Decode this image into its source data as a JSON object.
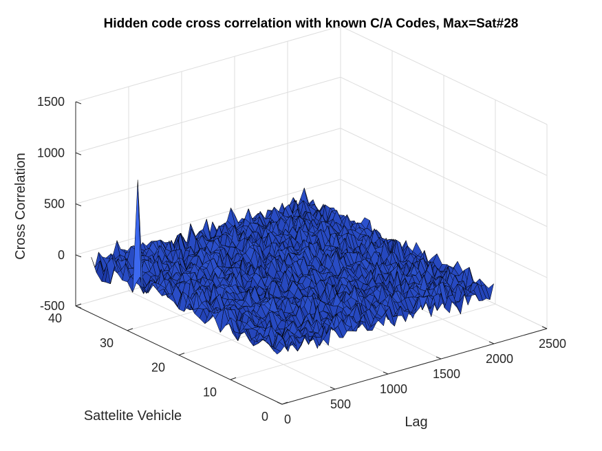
{
  "chart_data": {
    "type": "surface",
    "title": "Hidden code cross correlation with known C/A Codes, Max=Sat#28",
    "xlabel": "Lag",
    "ylabel": "Sattelite Vehicle",
    "zlabel": "Cross Correlation",
    "xlim": [
      0,
      2500
    ],
    "ylim": [
      0,
      40
    ],
    "zlim": [
      -500,
      1500
    ],
    "x_ticks": [
      0,
      500,
      1000,
      1500,
      2000,
      2500
    ],
    "y_ticks": [
      0,
      10,
      20,
      30,
      40
    ],
    "z_ticks": [
      -500,
      0,
      500,
      1000,
      1500
    ],
    "x_range": [
      1,
      2046
    ],
    "y_range": [
      1,
      37
    ],
    "noise_level": 60,
    "peak": {
      "satellite": 28,
      "lag": 10,
      "value": 1023
    },
    "grid": true,
    "colors": {
      "surface": "#2b4fd6",
      "edge": "#000000"
    }
  }
}
